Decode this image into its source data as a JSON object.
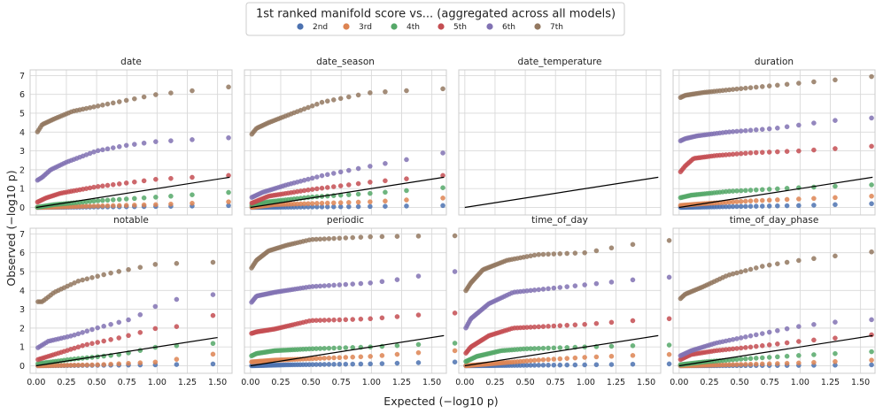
{
  "chart_data": {
    "type": "scatter",
    "suptitle": "1st ranked manifold score vs... (aggregated across all models)",
    "xlabel": "Expected (−log10 p)",
    "ylabel": "Observed (−log10 p)",
    "xlim": [
      -0.05,
      1.62
    ],
    "ylim": [
      -0.4,
      7.3
    ],
    "xticks": [
      "0.00",
      "0.25",
      "0.50",
      "0.75",
      "1.00",
      "1.25",
      "1.50"
    ],
    "yticks": [
      "0",
      "1",
      "2",
      "3",
      "4",
      "5",
      "6",
      "7"
    ],
    "legend": [
      {
        "label": "2nd",
        "color": "#4c72b0"
      },
      {
        "label": "3rd",
        "color": "#dd8452"
      },
      {
        "label": "4th",
        "color": "#55a868"
      },
      {
        "label": "5th",
        "color": "#c44e52"
      },
      {
        "label": "6th",
        "color": "#8172b3"
      },
      {
        "label": "7th",
        "color": "#937860"
      }
    ],
    "panels": [
      {
        "title": "date",
        "diag_max": 1.6,
        "n": [
          38,
          38,
          38,
          38,
          38,
          38
        ],
        "curves": [
          [
            [
              0,
              0.0
            ],
            [
              1,
              0.05
            ],
            [
              1.6,
              0.1
            ]
          ],
          [
            [
              0,
              0.0
            ],
            [
              1,
              0.15
            ],
            [
              1.6,
              0.3
            ]
          ],
          [
            [
              0,
              0.0
            ],
            [
              0.15,
              0.15
            ],
            [
              0.5,
              0.35
            ],
            [
              1,
              0.55
            ],
            [
              1.6,
              0.8
            ]
          ],
          [
            [
              0,
              0.25
            ],
            [
              0.08,
              0.5
            ],
            [
              0.2,
              0.75
            ],
            [
              0.5,
              1.1
            ],
            [
              1,
              1.5
            ],
            [
              1.6,
              1.7
            ]
          ],
          [
            [
              0,
              1.4
            ],
            [
              0.05,
              1.6
            ],
            [
              0.12,
              2.0
            ],
            [
              0.25,
              2.4
            ],
            [
              0.5,
              3.0
            ],
            [
              0.75,
              3.3
            ],
            [
              1,
              3.5
            ],
            [
              1.6,
              3.7
            ]
          ],
          [
            [
              0,
              3.9
            ],
            [
              0.05,
              4.4
            ],
            [
              0.15,
              4.7
            ],
            [
              0.3,
              5.1
            ],
            [
              0.6,
              5.5
            ],
            [
              1,
              6.0
            ],
            [
              1.6,
              6.4
            ]
          ]
        ]
      },
      {
        "title": "date_season",
        "diag_max": 1.6,
        "n": [
          38,
          38,
          38,
          38,
          38,
          38
        ],
        "curves": [
          [
            [
              0,
              0.0
            ],
            [
              1,
              0.05
            ],
            [
              1.6,
              0.1
            ]
          ],
          [
            [
              0,
              0.0
            ],
            [
              0.2,
              0.15
            ],
            [
              1,
              0.3
            ],
            [
              1.6,
              0.5
            ]
          ],
          [
            [
              0,
              0.1
            ],
            [
              0.15,
              0.3
            ],
            [
              0.5,
              0.55
            ],
            [
              1,
              0.75
            ],
            [
              1.6,
              1.05
            ]
          ],
          [
            [
              0,
              0.2
            ],
            [
              0.15,
              0.6
            ],
            [
              0.5,
              0.95
            ],
            [
              1,
              1.35
            ],
            [
              1.6,
              1.7
            ]
          ],
          [
            [
              0,
              0.5
            ],
            [
              0.1,
              0.8
            ],
            [
              0.3,
              1.2
            ],
            [
              0.6,
              1.7
            ],
            [
              1,
              2.2
            ],
            [
              1.6,
              2.9
            ]
          ],
          [
            [
              0,
              3.8
            ],
            [
              0.05,
              4.2
            ],
            [
              0.15,
              4.5
            ],
            [
              0.35,
              5.0
            ],
            [
              0.6,
              5.6
            ],
            [
              1,
              6.1
            ],
            [
              1.6,
              6.3
            ]
          ]
        ]
      },
      {
        "title": "date_temperature",
        "diag_max": 1.6,
        "n": [
          0,
          0,
          0,
          0,
          0,
          0
        ],
        "curves": [
          [],
          [],
          [],
          [],
          [],
          []
        ]
      },
      {
        "title": "duration",
        "diag_max": 1.6,
        "n": [
          38,
          38,
          38,
          38,
          38,
          38
        ],
        "curves": [
          [
            [
              0,
              0.0
            ],
            [
              0.5,
              0.05
            ],
            [
              1,
              0.1
            ],
            [
              1.6,
              0.2
            ]
          ],
          [
            [
              0,
              0.1
            ],
            [
              0.2,
              0.2
            ],
            [
              0.6,
              0.35
            ],
            [
              1,
              0.45
            ],
            [
              1.6,
              0.6
            ]
          ],
          [
            [
              0,
              0.5
            ],
            [
              0.1,
              0.65
            ],
            [
              0.4,
              0.85
            ],
            [
              0.7,
              0.95
            ],
            [
              1,
              1.05
            ],
            [
              1.6,
              1.2
            ]
          ],
          [
            [
              0,
              1.8
            ],
            [
              0.05,
              2.2
            ],
            [
              0.12,
              2.6
            ],
            [
              0.3,
              2.75
            ],
            [
              0.6,
              2.9
            ],
            [
              1,
              3.0
            ],
            [
              1.6,
              3.25
            ]
          ],
          [
            [
              0,
              3.5
            ],
            [
              0.05,
              3.65
            ],
            [
              0.15,
              3.8
            ],
            [
              0.4,
              4.0
            ],
            [
              0.8,
              4.2
            ],
            [
              1.25,
              4.6
            ],
            [
              1.6,
              4.75
            ]
          ],
          [
            [
              0,
              5.8
            ],
            [
              0.05,
              5.95
            ],
            [
              0.2,
              6.1
            ],
            [
              0.5,
              6.3
            ],
            [
              1,
              6.6
            ],
            [
              1.6,
              6.95
            ]
          ]
        ]
      },
      {
        "title": "notable",
        "diag_max": 1.5,
        "n": [
          28,
          28,
          28,
          28,
          28,
          28
        ],
        "curves": [
          [
            [
              0,
              0.0
            ],
            [
              1,
              0.05
            ],
            [
              1.5,
              0.1
            ]
          ],
          [
            [
              0,
              0.0
            ],
            [
              0.5,
              0.05
            ],
            [
              1,
              0.2
            ],
            [
              1.5,
              0.65
            ]
          ],
          [
            [
              0,
              0.1
            ],
            [
              0.3,
              0.35
            ],
            [
              0.7,
              0.6
            ],
            [
              1,
              1.0
            ],
            [
              1.5,
              1.2
            ]
          ],
          [
            [
              0,
              0.3
            ],
            [
              0.15,
              0.6
            ],
            [
              0.4,
              1.1
            ],
            [
              0.7,
              1.5
            ],
            [
              1,
              2.0
            ],
            [
              1.2,
              2.1
            ],
            [
              1.5,
              2.75
            ]
          ],
          [
            [
              0,
              0.9
            ],
            [
              0.1,
              1.3
            ],
            [
              0.3,
              1.6
            ],
            [
              0.5,
              2.0
            ],
            [
              0.8,
              2.5
            ],
            [
              1,
              3.2
            ],
            [
              1.2,
              3.6
            ],
            [
              1.5,
              3.8
            ]
          ],
          [
            [
              0.05,
              3.4
            ],
            [
              0.15,
              3.9
            ],
            [
              0.35,
              4.5
            ],
            [
              0.6,
              4.9
            ],
            [
              1,
              5.4
            ],
            [
              1.5,
              5.5
            ]
          ]
        ]
      },
      {
        "title": "periodic",
        "diag_max": 1.6,
        "n": [
          48,
          48,
          48,
          48,
          48,
          48
        ],
        "curves": [
          [
            [
              0,
              0.0
            ],
            [
              0.3,
              0.05
            ],
            [
              1,
              0.1
            ],
            [
              1.6,
              0.2
            ]
          ],
          [
            [
              0,
              0.2
            ],
            [
              0.2,
              0.3
            ],
            [
              0.6,
              0.4
            ],
            [
              1,
              0.5
            ],
            [
              1.6,
              0.8
            ]
          ],
          [
            [
              0,
              0.5
            ],
            [
              0.05,
              0.65
            ],
            [
              0.2,
              0.8
            ],
            [
              0.5,
              0.9
            ],
            [
              1,
              1.0
            ],
            [
              1.6,
              1.2
            ]
          ],
          [
            [
              0,
              1.7
            ],
            [
              0.05,
              1.8
            ],
            [
              0.2,
              1.95
            ],
            [
              0.5,
              2.4
            ],
            [
              0.8,
              2.45
            ],
            [
              1,
              2.5
            ],
            [
              1.6,
              2.8
            ]
          ],
          [
            [
              0,
              3.3
            ],
            [
              0.05,
              3.7
            ],
            [
              0.2,
              3.9
            ],
            [
              0.5,
              4.2
            ],
            [
              1,
              4.4
            ],
            [
              1.25,
              4.6
            ],
            [
              1.6,
              5.0
            ]
          ],
          [
            [
              0,
              5.1
            ],
            [
              0.05,
              5.6
            ],
            [
              0.15,
              6.1
            ],
            [
              0.3,
              6.4
            ],
            [
              0.5,
              6.7
            ],
            [
              1,
              6.85
            ],
            [
              1.6,
              6.9
            ]
          ]
        ]
      },
      {
        "title": "time_of_day",
        "diag_max": 1.6,
        "n": [
          48,
          48,
          48,
          48,
          48,
          48
        ],
        "curves": [
          [
            [
              0,
              0.0
            ],
            [
              1,
              0.05
            ],
            [
              1.6,
              0.1
            ]
          ],
          [
            [
              0,
              0.0
            ],
            [
              0.2,
              0.1
            ],
            [
              0.6,
              0.3
            ],
            [
              1,
              0.45
            ],
            [
              1.6,
              0.6
            ]
          ],
          [
            [
              0,
              0.2
            ],
            [
              0.1,
              0.5
            ],
            [
              0.3,
              0.8
            ],
            [
              0.5,
              0.9
            ],
            [
              1,
              1.0
            ],
            [
              1.6,
              1.1
            ]
          ],
          [
            [
              0,
              0.6
            ],
            [
              0.05,
              1.0
            ],
            [
              0.2,
              1.6
            ],
            [
              0.4,
              2.0
            ],
            [
              0.7,
              2.1
            ],
            [
              1,
              2.2
            ],
            [
              1.6,
              2.5
            ]
          ],
          [
            [
              0,
              1.9
            ],
            [
              0.05,
              2.5
            ],
            [
              0.2,
              3.3
            ],
            [
              0.4,
              3.9
            ],
            [
              0.7,
              4.1
            ],
            [
              1,
              4.3
            ],
            [
              1.6,
              4.7
            ]
          ],
          [
            [
              0,
              3.9
            ],
            [
              0.05,
              4.4
            ],
            [
              0.15,
              5.1
            ],
            [
              0.35,
              5.6
            ],
            [
              0.6,
              5.9
            ],
            [
              1,
              6.0
            ],
            [
              1.25,
              6.3
            ],
            [
              1.6,
              6.65
            ]
          ]
        ]
      },
      {
        "title": "time_of_day_phase",
        "diag_max": 1.6,
        "n": [
          38,
          38,
          38,
          38,
          38,
          38
        ],
        "curves": [
          [
            [
              0,
              0.0
            ],
            [
              1,
              0.02
            ],
            [
              1.6,
              0.05
            ]
          ],
          [
            [
              0,
              0.0
            ],
            [
              0.4,
              0.05
            ],
            [
              1,
              0.15
            ],
            [
              1.6,
              0.3
            ]
          ],
          [
            [
              0,
              0.05
            ],
            [
              0.2,
              0.2
            ],
            [
              0.5,
              0.35
            ],
            [
              1,
              0.55
            ],
            [
              1.6,
              0.75
            ]
          ],
          [
            [
              0,
              0.3
            ],
            [
              0.1,
              0.6
            ],
            [
              0.3,
              0.8
            ],
            [
              0.6,
              1.0
            ],
            [
              1,
              1.3
            ],
            [
              1.6,
              1.65
            ]
          ],
          [
            [
              0,
              0.5
            ],
            [
              0.1,
              0.8
            ],
            [
              0.3,
              1.2
            ],
            [
              0.6,
              1.6
            ],
            [
              1,
              2.1
            ],
            [
              1.25,
              2.3
            ],
            [
              1.6,
              2.45
            ]
          ],
          [
            [
              0,
              3.5
            ],
            [
              0.05,
              3.8
            ],
            [
              0.2,
              4.2
            ],
            [
              0.4,
              4.8
            ],
            [
              0.7,
              5.3
            ],
            [
              1,
              5.6
            ],
            [
              1.25,
              5.8
            ],
            [
              1.6,
              6.05
            ]
          ]
        ]
      }
    ]
  }
}
